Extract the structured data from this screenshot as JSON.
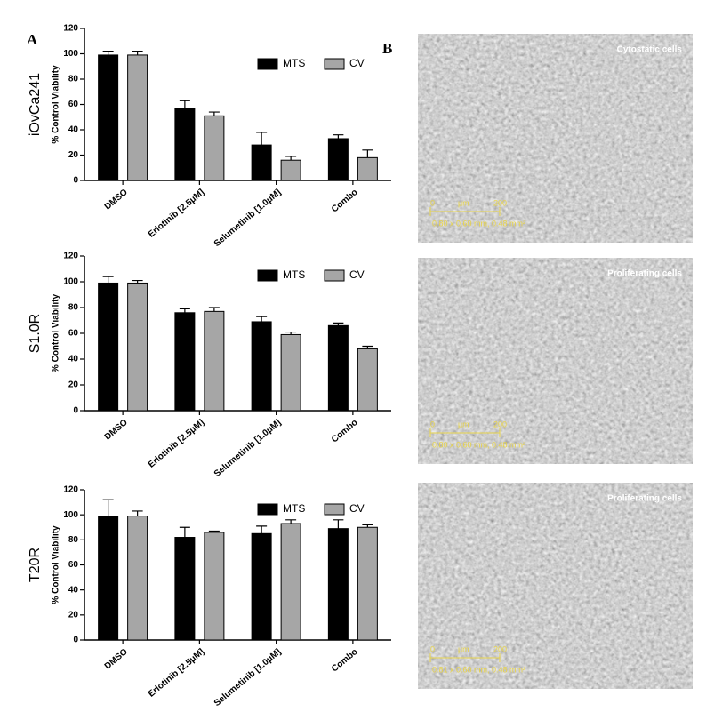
{
  "panels": [
    "A",
    "B"
  ],
  "chart_data": [
    {
      "type": "bar",
      "title": "iOvCa241",
      "y_label": "% Control Viability",
      "categories": [
        "DMSO",
        "Erlotinib [2.5μM]",
        "Selumetinib [1.0μM]",
        "Combo"
      ],
      "series": [
        {
          "name": "MTS",
          "color": "#000000",
          "values": [
            99,
            57,
            28,
            33
          ],
          "errors": [
            3,
            6,
            10,
            3
          ]
        },
        {
          "name": "CV",
          "color": "#a6a6a6",
          "values": [
            99,
            51,
            16,
            18
          ],
          "errors": [
            3,
            3,
            3,
            6
          ]
        }
      ],
      "ylim": [
        0,
        120
      ],
      "yticks": [
        0,
        20,
        40,
        60,
        80,
        100,
        120
      ],
      "legend": "top-right"
    },
    {
      "type": "bar",
      "title": "S1.0R",
      "y_label": "% Control Viability",
      "categories": [
        "DMSO",
        "Erlotinib [2.5μM]",
        "Selumetinib [1.0μM]",
        "Combo"
      ],
      "series": [
        {
          "name": "MTS",
          "color": "#000000",
          "values": [
            99,
            76,
            69,
            66
          ],
          "errors": [
            5,
            3,
            4,
            2
          ]
        },
        {
          "name": "CV",
          "color": "#a6a6a6",
          "values": [
            99,
            77,
            59,
            48
          ],
          "errors": [
            2,
            3,
            2,
            2
          ]
        }
      ],
      "ylim": [
        0,
        120
      ],
      "yticks": [
        0,
        20,
        40,
        60,
        80,
        100,
        120
      ],
      "legend": "top-right"
    },
    {
      "type": "bar",
      "title": "T20R",
      "y_label": "% Control Viability",
      "categories": [
        "DMSO",
        "Erlotinib [2.5μM]",
        "Selumetinib [1.0μM]",
        "Combo"
      ],
      "series": [
        {
          "name": "MTS",
          "color": "#000000",
          "values": [
            99,
            82,
            85,
            89
          ],
          "errors": [
            13,
            8,
            6,
            7
          ]
        },
        {
          "name": "CV",
          "color": "#a6a6a6",
          "values": [
            99,
            86,
            93,
            90
          ],
          "errors": [
            4,
            1,
            3,
            2
          ]
        }
      ],
      "ylim": [
        0,
        120
      ],
      "yticks": [
        0,
        20,
        40,
        60,
        80,
        100,
        120
      ],
      "legend": "top-right"
    }
  ],
  "images": [
    {
      "caption": "Cytostatic cells",
      "scale_start": "0",
      "scale_unit": "µm",
      "scale_end": "200",
      "dimensions": "0.80 x 0.60 mm, 0.48 mm²"
    },
    {
      "caption": "Proliferating cells",
      "scale_start": "0",
      "scale_unit": "µm",
      "scale_end": "200",
      "dimensions": "0.80 x 0.60 mm, 0.48 mm²"
    },
    {
      "caption": "Proliferating cells",
      "scale_start": "0",
      "scale_unit": "µm",
      "scale_end": "200",
      "dimensions": "0.81 x 0.60 mm, 0.48 mm²"
    }
  ]
}
